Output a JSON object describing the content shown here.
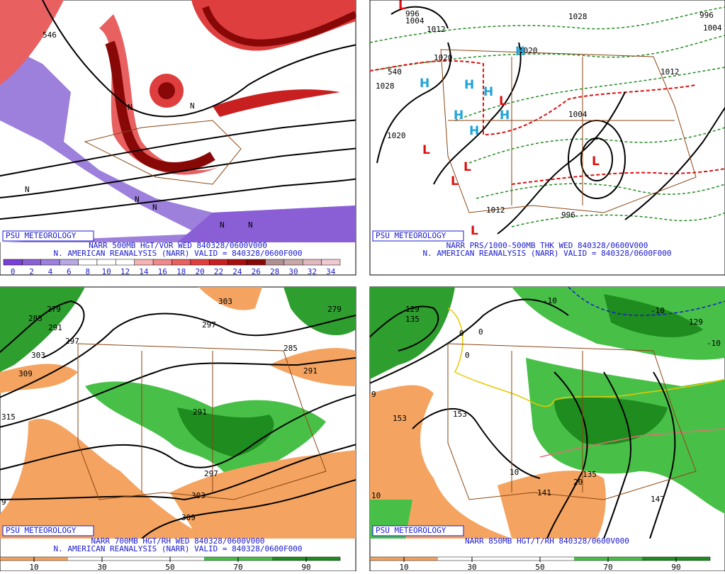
{
  "panels": [
    {
      "credit": "PSU METEOROLOGY",
      "title": "NARR 500MB HGT/VOR WED 840328/0600V000",
      "subtitle": "N. AMERICAN REANALYSIS (NARR) VALID = 840328/0600F000",
      "colorbar": {
        "ticks": [
          0,
          2,
          4,
          6,
          8,
          10,
          12,
          14,
          16,
          18,
          20,
          22,
          24,
          26,
          28,
          30,
          32,
          34
        ],
        "colors": [
          "#7a3fd6",
          "#8a5fd6",
          "#9d7fdc",
          "#b8a8e4",
          "#ffffff",
          "#ffffff",
          "#ffffff",
          "#f6b3b3",
          "#f08a8a",
          "#e86060",
          "#de3e3e",
          "#c82020",
          "#a81010",
          "#880808",
          "#b09090",
          "#c8a8a8",
          "#e0b8c0",
          "#f0c8d0"
        ]
      },
      "labels": [
        "546",
        "N",
        "N",
        "N",
        "N",
        "N",
        "N",
        "N"
      ]
    },
    {
      "credit": "PSU METEOROLOGY",
      "title": "NARR PRS/1000-500MB THK WED 840328/0600V000",
      "subtitle": "N. AMERICAN REANALYSIS (NARR) VALID = 840328/0600F000",
      "labels": [
        "996",
        "1004",
        "1012",
        "1020",
        "1028",
        "1020",
        "1028",
        "540",
        "1004",
        "996",
        "1012",
        "1012",
        "1020",
        "996",
        "1004"
      ],
      "highs": [
        "H",
        "H",
        "H",
        "H",
        "H",
        "H",
        "H"
      ],
      "lows": [
        "L",
        "L",
        "L",
        "L",
        "L",
        "L",
        "L"
      ]
    },
    {
      "credit": "PSU METEOROLOGY",
      "title": "NARR 700MB HGT/RH WED 840328/0600V000",
      "subtitle": "N. AMERICAN REANALYSIS (NARR) VALID = 840328/0600F000",
      "colorbar": {
        "ticks": [
          10,
          30,
          50,
          70,
          90
        ],
        "colors": [
          "#f4a460",
          "#ffffff",
          "#ffffff",
          "#48c048",
          "#1e8c1e"
        ]
      },
      "labels": [
        "279",
        "285",
        "291",
        "297",
        "303",
        "309",
        "315",
        "303",
        "297",
        "285",
        "291",
        "279",
        "291",
        "297",
        "303",
        "309",
        "9"
      ]
    },
    {
      "credit": "PSU METEOROLOGY",
      "title": "NARR 850MB HGT/T/RH 840328/0600V000",
      "colorbar": {
        "ticks": [
          10,
          30,
          50,
          70,
          90
        ],
        "colors": [
          "#f4a460",
          "#ffffff",
          "#ffffff",
          "#48c048",
          "#1e8c1e"
        ]
      },
      "labels": [
        "129",
        "135",
        "153",
        "153",
        "141",
        "147",
        "135",
        "129",
        "10",
        "20",
        "10",
        "-10",
        "-10",
        "-10",
        "0",
        "0",
        "0",
        "9"
      ]
    }
  ]
}
